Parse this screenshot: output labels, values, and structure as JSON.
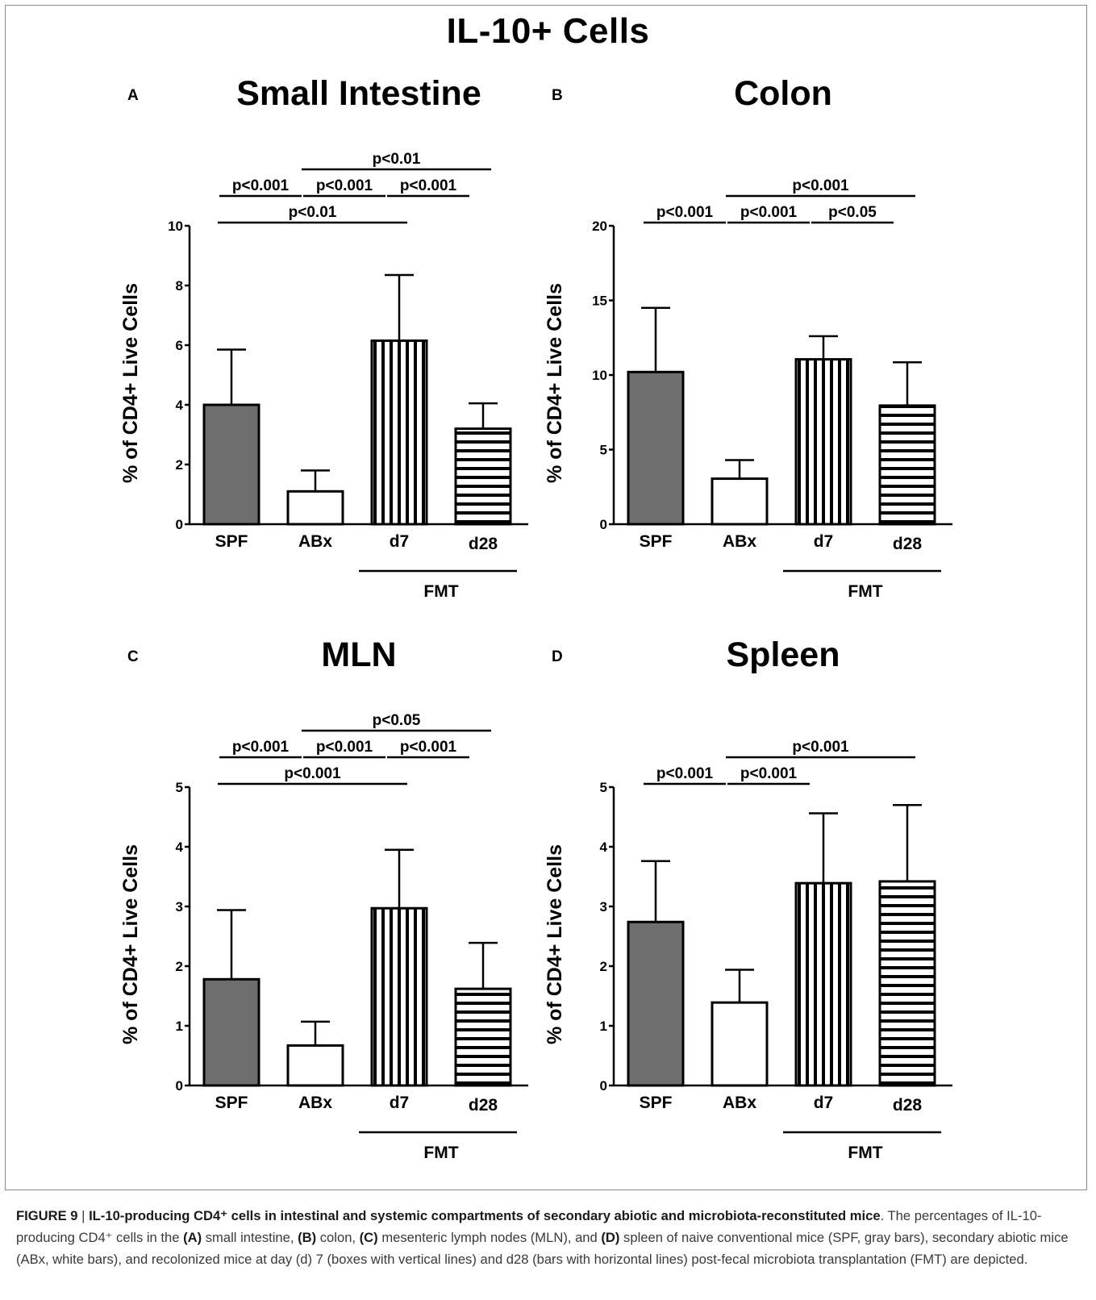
{
  "page": {
    "title": "IL-10+ Cells"
  },
  "chart_data": [
    {
      "type": "bar",
      "panel": "A",
      "title": "Small Intestine",
      "ylabel": "% of CD4+ Live Cells",
      "ylim": [
        0,
        10
      ],
      "yticks": [
        0,
        2,
        4,
        6,
        8,
        10
      ],
      "categories": [
        "SPF",
        "ABx",
        "d7",
        "d28"
      ],
      "values": [
        4.0,
        1.1,
        6.15,
        3.2
      ],
      "errors": [
        1.85,
        0.7,
        2.2,
        0.85
      ],
      "patterns": [
        "gray",
        "white",
        "vertical",
        "horizontal"
      ],
      "group_label": "FMT",
      "significance": [
        {
          "from": 0,
          "to": 2,
          "label": "p<0.01"
        },
        {
          "from": 0,
          "to": 1,
          "label": "p<0.001"
        },
        {
          "from": 1,
          "to": 2,
          "label": "p<0.001"
        },
        {
          "from": 2,
          "to": 3,
          "label": "p<0.001"
        },
        {
          "from": 1,
          "to": 3,
          "label": "p<0.01"
        }
      ]
    },
    {
      "type": "bar",
      "panel": "B",
      "title": "Colon",
      "ylabel": "% of CD4+ Live Cells",
      "ylim": [
        0,
        20
      ],
      "yticks": [
        0,
        5,
        10,
        15,
        20
      ],
      "categories": [
        "SPF",
        "ABx",
        "d7",
        "d28"
      ],
      "values": [
        10.2,
        3.05,
        11.05,
        7.95
      ],
      "errors": [
        4.3,
        1.25,
        1.55,
        2.9
      ],
      "patterns": [
        "gray",
        "white",
        "vertical",
        "horizontal"
      ],
      "group_label": "FMT",
      "significance": [
        {
          "from": 0,
          "to": 1,
          "label": "p<0.001"
        },
        {
          "from": 1,
          "to": 2,
          "label": "p<0.001"
        },
        {
          "from": 2,
          "to": 3,
          "label": "p<0.05"
        },
        {
          "from": 1,
          "to": 3,
          "label": "p<0.001"
        }
      ]
    },
    {
      "type": "bar",
      "panel": "C",
      "title": "MLN",
      "ylabel": "% of CD4+ Live Cells",
      "ylim": [
        0,
        5
      ],
      "yticks": [
        0,
        1,
        2,
        3,
        4,
        5
      ],
      "categories": [
        "SPF",
        "ABx",
        "d7",
        "d28"
      ],
      "values": [
        1.78,
        0.67,
        2.97,
        1.62
      ],
      "errors": [
        1.16,
        0.4,
        0.98,
        0.77
      ],
      "patterns": [
        "gray",
        "white",
        "vertical",
        "horizontal"
      ],
      "group_label": "FMT",
      "significance": [
        {
          "from": 0,
          "to": 2,
          "label": "p<0.001"
        },
        {
          "from": 0,
          "to": 1,
          "label": "p<0.001"
        },
        {
          "from": 1,
          "to": 2,
          "label": "p<0.001"
        },
        {
          "from": 2,
          "to": 3,
          "label": "p<0.001"
        },
        {
          "from": 1,
          "to": 3,
          "label": "p<0.05"
        }
      ]
    },
    {
      "type": "bar",
      "panel": "D",
      "title": "Spleen",
      "ylabel": "% of CD4+ Live Cells",
      "ylim": [
        0,
        5
      ],
      "yticks": [
        0,
        1,
        2,
        3,
        4,
        5
      ],
      "categories": [
        "SPF",
        "ABx",
        "d7",
        "d28"
      ],
      "values": [
        2.74,
        1.39,
        3.39,
        3.42
      ],
      "errors": [
        1.02,
        0.55,
        1.17,
        1.28
      ],
      "patterns": [
        "gray",
        "white",
        "vertical",
        "horizontal"
      ],
      "group_label": "FMT",
      "significance": [
        {
          "from": 0,
          "to": 1,
          "label": "p<0.001"
        },
        {
          "from": 1,
          "to": 2,
          "label": "p<0.001"
        },
        {
          "from": 1,
          "to": 3,
          "label": "p<0.001"
        }
      ]
    }
  ],
  "caption": {
    "label": "FIGURE 9",
    "separator": " | ",
    "title": "IL-10-producing CD4⁺ cells in intestinal and systemic compartments of secondary abiotic and microbiota-reconstituted mice",
    "t1": ". The percentages of IL-10-producing CD4⁺ cells in the ",
    "a": "(A)",
    "t2": " small intestine, ",
    "b": "(B)",
    "t3": " colon, ",
    "c": "(C)",
    "t4": " mesenteric lymph nodes (MLN), and ",
    "d": "(D)",
    "t5": " spleen of naive conventional mice (SPF, gray bars), secondary abiotic mice (ABx, white bars), and recolonized mice at day (d) 7 (boxes with vertical lines) and d28 (bars with horizontal lines) post-fecal microbiota transplantation (FMT) are depicted."
  },
  "colors": {
    "gray_bar": "#6e6e6e",
    "stroke": "#000000",
    "caption_text": "#3a3a3a"
  }
}
